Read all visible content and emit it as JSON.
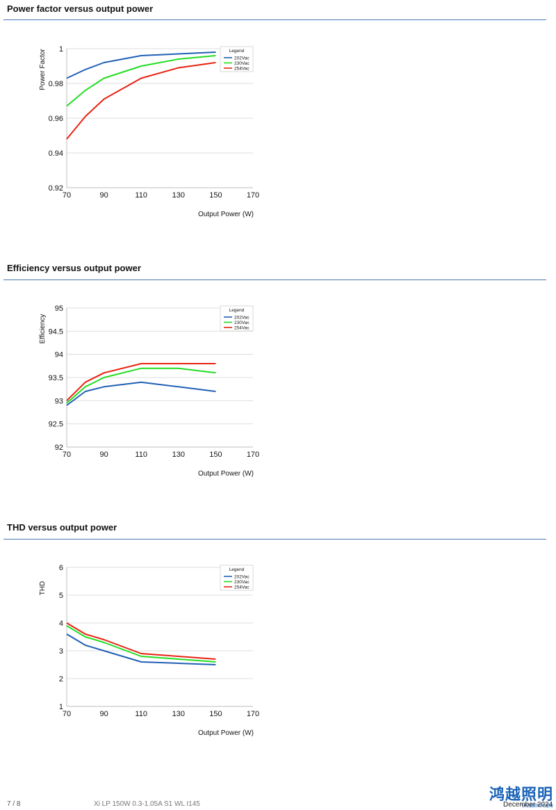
{
  "sections": [
    {
      "title": "Power factor versus output power"
    },
    {
      "title": "Efficiency versus output power"
    },
    {
      "title": "THD versus output power"
    }
  ],
  "chart_data": [
    {
      "type": "line",
      "title": "",
      "xlabel": "Output Power (W)",
      "ylabel": "Power Factor",
      "xlim": [
        70,
        170
      ],
      "ylim": [
        0.92,
        1
      ],
      "xticks": [
        70,
        90,
        110,
        130,
        150,
        170
      ],
      "yticks": [
        0.92,
        0.94,
        0.96,
        0.98,
        1
      ],
      "ytick_labels": [
        "0.92",
        "0.94",
        "0.96",
        "0.98",
        "1"
      ],
      "grid": true,
      "legend": {
        "title": "Legend",
        "placement": "top-right"
      },
      "x": [
        70,
        80,
        90,
        110,
        130,
        150
      ],
      "series": [
        {
          "name": "202Vac",
          "color": "#1f5fb4",
          "values": [
            0.983,
            0.988,
            0.992,
            0.996,
            0.997,
            0.998
          ]
        },
        {
          "name": "230Vac",
          "color": "#22dd22",
          "values": [
            0.967,
            0.976,
            0.983,
            0.99,
            0.994,
            0.996
          ]
        },
        {
          "name": "254Vac",
          "color": "#e8210f",
          "values": [
            0.948,
            0.961,
            0.971,
            0.983,
            0.989,
            0.992
          ]
        }
      ]
    },
    {
      "type": "line",
      "title": "",
      "xlabel": "Output Power (W)",
      "ylabel": "Efficiency",
      "xlim": [
        70,
        170
      ],
      "ylim": [
        92,
        95
      ],
      "xticks": [
        70,
        90,
        110,
        130,
        150,
        170
      ],
      "yticks": [
        92,
        92.5,
        93,
        93.5,
        94,
        94.5,
        95
      ],
      "ytick_labels": [
        "92",
        "92.5",
        "93",
        "93.5",
        "94",
        "94.5",
        "95"
      ],
      "grid": true,
      "legend": {
        "title": "Legend",
        "placement": "top-right"
      },
      "x": [
        70,
        80,
        90,
        110,
        130,
        150
      ],
      "series": [
        {
          "name": "202Vac",
          "color": "#1f5fb4",
          "values": [
            92.9,
            93.2,
            93.3,
            93.4,
            93.3,
            93.2
          ]
        },
        {
          "name": "230Vac",
          "color": "#22dd22",
          "values": [
            92.95,
            93.3,
            93.5,
            93.7,
            93.7,
            93.6
          ]
        },
        {
          "name": "254Vac",
          "color": "#e8210f",
          "values": [
            93.0,
            93.4,
            93.6,
            93.8,
            93.8,
            93.8
          ]
        }
      ]
    },
    {
      "type": "line",
      "title": "",
      "xlabel": "Output Power (W)",
      "ylabel": "THD",
      "xlim": [
        70,
        170
      ],
      "ylim": [
        1,
        6
      ],
      "xticks": [
        70,
        90,
        110,
        130,
        150,
        170
      ],
      "yticks": [
        1,
        2,
        3,
        4,
        5,
        6
      ],
      "ytick_labels": [
        "1",
        "2",
        "3",
        "4",
        "5",
        "6"
      ],
      "grid": true,
      "legend": {
        "title": "Legend",
        "placement": "top-right"
      },
      "x": [
        70,
        80,
        90,
        110,
        130,
        150
      ],
      "series": [
        {
          "name": "202Vac",
          "color": "#1f5fb4",
          "values": [
            3.6,
            3.2,
            3.0,
            2.6,
            2.55,
            2.5
          ]
        },
        {
          "name": "230Vac",
          "color": "#22dd22",
          "values": [
            3.9,
            3.5,
            3.3,
            2.8,
            2.7,
            2.6
          ]
        },
        {
          "name": "254Vac",
          "color": "#e8210f",
          "values": [
            4.0,
            3.6,
            3.4,
            2.9,
            2.8,
            2.7
          ]
        }
      ]
    }
  ],
  "footer": {
    "page": "7 / 8",
    "product": "Xi LP 150W 0.3-1.05A S1 WL I145",
    "date": "December 2024"
  },
  "logo": {
    "text": "鸿越照明",
    "subtext": "飞利浦照明代理商"
  }
}
